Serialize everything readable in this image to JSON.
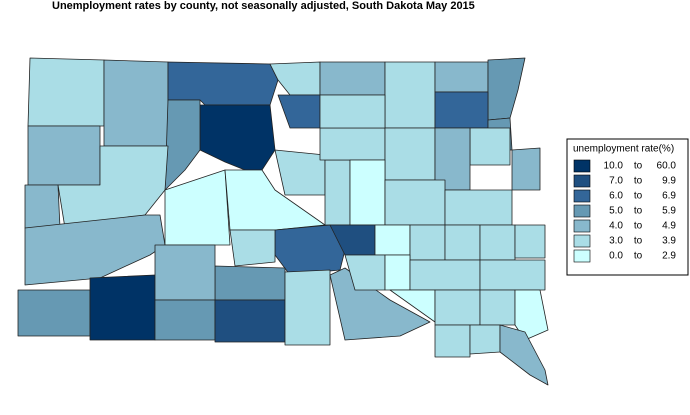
{
  "title": "Unemployment rates by county, not seasonally adjusted,  South Dakota  May 2015",
  "legend": {
    "title": "unemployment rate(%)",
    "separator": "to",
    "items": [
      {
        "low": "10.0",
        "high": "60.0",
        "color": "#003366"
      },
      {
        "low": "7.0",
        "high": "9.9",
        "color": "#1f4f80"
      },
      {
        "low": "6.0",
        "high": "6.9",
        "color": "#336699"
      },
      {
        "low": "5.0",
        "high": "5.9",
        "color": "#6699b3"
      },
      {
        "low": "4.0",
        "high": "4.9",
        "color": "#88b8cc"
      },
      {
        "low": "3.0",
        "high": "3.9",
        "color": "#aadde6"
      },
      {
        "low": "0.0",
        "high": "2.9",
        "color": "#ccffff"
      }
    ]
  }
}
